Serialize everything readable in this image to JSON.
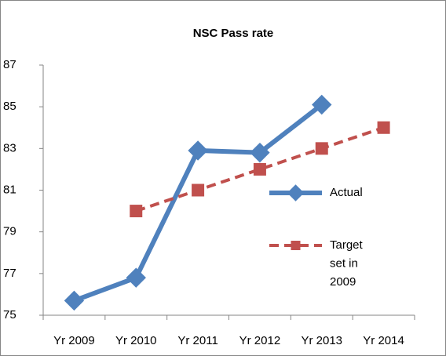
{
  "chart_data": {
    "type": "line",
    "title": "NSC Pass rate",
    "categories": [
      "Yr 2009",
      "Yr 2010",
      "Yr 2011",
      "Yr 2012",
      "Yr 2013",
      "Yr 2014"
    ],
    "series": [
      {
        "name": "Actual",
        "color": "#4f81bd",
        "values": [
          75.7,
          76.8,
          82.9,
          82.8,
          85.1,
          null
        ]
      },
      {
        "name": "Target set in 2009",
        "color": "#c0504d",
        "values": [
          null,
          80,
          81,
          82,
          83,
          84
        ]
      }
    ],
    "ylim": [
      75,
      87
    ],
    "yticks": [
      75,
      77,
      79,
      81,
      83,
      85,
      87
    ],
    "grid": false,
    "legend": "right"
  }
}
